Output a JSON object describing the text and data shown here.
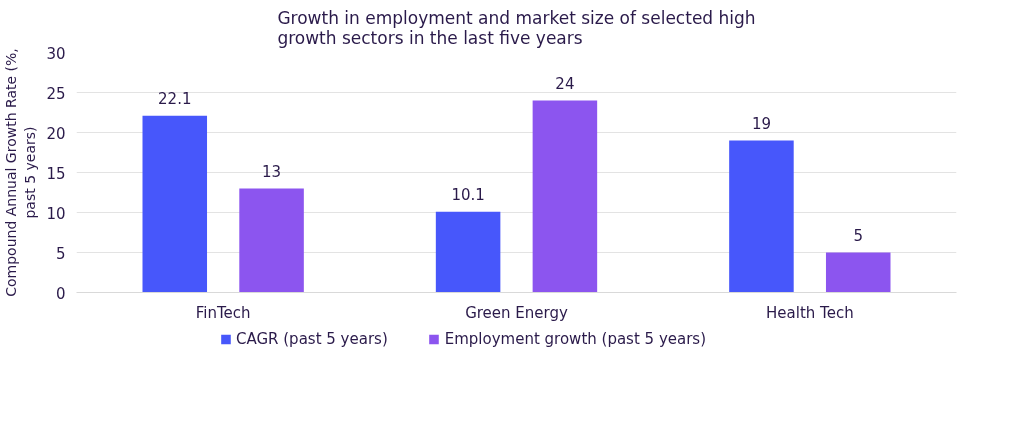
{
  "chart_data": {
    "type": "bar",
    "title": "Growth in employment and market size of selected high\ngrowth sectors in the last five years",
    "ylabel": "Compound Annual Growth Rate (%,\npast 5 years)",
    "categories": [
      "FinTech",
      "Green Energy",
      "Health Tech"
    ],
    "series": [
      {
        "name": "CAGR (past 5 years)",
        "color": "#4757fb",
        "values": [
          22.1,
          10.1,
          19
        ]
      },
      {
        "name": "Employment growth (past 5 years)",
        "color": "#8c55ef",
        "values": [
          13,
          24,
          5
        ]
      }
    ],
    "ylim": [
      0,
      30
    ],
    "yticks": [
      0,
      5,
      10,
      15,
      20,
      25,
      30
    ],
    "grid": "y",
    "legend": "bottom",
    "data_labels": true
  }
}
